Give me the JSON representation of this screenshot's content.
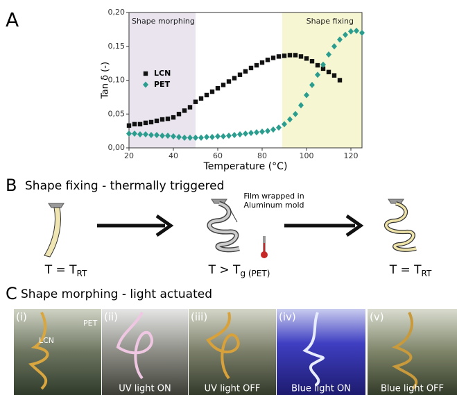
{
  "panel_labels": [
    "A",
    "B",
    "C"
  ],
  "chart_data": {
    "type": "scatter",
    "xlabel": "Temperature (°C)",
    "ylabel": "Tan δ (-)",
    "xlim": [
      20,
      125
    ],
    "ylim": [
      0,
      0.2
    ],
    "xticks": [
      20,
      40,
      60,
      80,
      100,
      120
    ],
    "yticks": [
      {
        "value": 0,
        "label": "0,00"
      },
      {
        "value": 0.05,
        "label": "0,05"
      },
      {
        "value": 0.1,
        "label": "0,10"
      },
      {
        "value": 0.15,
        "label": "0,15"
      },
      {
        "value": 0.2,
        "label": "0,20"
      }
    ],
    "regions": [
      {
        "label": "Shape morphing",
        "x": [
          20,
          50
        ],
        "color": "#e9e4ee"
      },
      {
        "label": "Shape fixing",
        "x": [
          89,
          125
        ],
        "color": "#f7f6d2"
      }
    ],
    "legend": "upper left",
    "series": [
      {
        "name": "LCN",
        "color": "#111111",
        "marker": "square",
        "x": [
          20,
          22.5,
          25,
          27.5,
          30,
          32.5,
          35,
          37.5,
          40,
          42.5,
          45,
          47.5,
          50,
          52.5,
          55,
          57.5,
          60,
          62.5,
          65,
          67.5,
          70,
          72.5,
          75,
          77.5,
          80,
          82.5,
          85,
          87.5,
          90,
          92.5,
          95,
          97.5,
          100,
          102.5,
          105,
          107.5,
          110,
          112.5,
          115
        ],
        "values": [
          0.033,
          0.035,
          0.035,
          0.037,
          0.038,
          0.04,
          0.042,
          0.043,
          0.045,
          0.05,
          0.055,
          0.06,
          0.068,
          0.073,
          0.078,
          0.083,
          0.088,
          0.093,
          0.098,
          0.103,
          0.108,
          0.113,
          0.118,
          0.122,
          0.126,
          0.13,
          0.133,
          0.135,
          0.136,
          0.137,
          0.137,
          0.135,
          0.132,
          0.128,
          0.122,
          0.117,
          0.112,
          0.107,
          0.1
        ]
      },
      {
        "name": "PET",
        "color": "#2a9d8f",
        "marker": "diamond",
        "x": [
          20,
          22.5,
          25,
          27.5,
          30,
          32.5,
          35,
          37.5,
          40,
          42.5,
          45,
          47.5,
          50,
          52.5,
          55,
          57.5,
          60,
          62.5,
          65,
          67.5,
          70,
          72.5,
          75,
          77.5,
          80,
          82.5,
          85,
          87.5,
          90,
          92.5,
          95,
          97.5,
          100,
          102.5,
          105,
          107.5,
          110,
          112.5,
          115,
          117.5,
          120,
          122.5,
          125
        ],
        "values": [
          0.021,
          0.021,
          0.02,
          0.02,
          0.019,
          0.019,
          0.018,
          0.018,
          0.017,
          0.016,
          0.015,
          0.015,
          0.015,
          0.015,
          0.016,
          0.016,
          0.017,
          0.017,
          0.018,
          0.019,
          0.02,
          0.021,
          0.022,
          0.023,
          0.024,
          0.025,
          0.027,
          0.03,
          0.035,
          0.042,
          0.05,
          0.063,
          0.078,
          0.093,
          0.108,
          0.123,
          0.138,
          0.15,
          0.16,
          0.167,
          0.172,
          0.173,
          0.17
        ]
      }
    ]
  },
  "panel_b": {
    "title": "Shape fixing - thermally triggered",
    "states": [
      {
        "main": "T = T",
        "sub": "RT"
      },
      {
        "main": "T > T",
        "sub": "g (PET)"
      },
      {
        "main": "T = T",
        "sub": "RT"
      }
    ],
    "annotation": [
      "Film wrapped in",
      "Aluminum mold"
    ]
  },
  "panel_c": {
    "title": "Shape morphing - light actuated",
    "photos": [
      {
        "label": "(i)",
        "annotations": [
          "LCN",
          "PET"
        ]
      },
      {
        "label": "(ii)",
        "caption": "UV light ON"
      },
      {
        "label": "(iii)",
        "caption": "UV light OFF"
      },
      {
        "label": "(iv)",
        "caption": "Blue light ON"
      },
      {
        "label": "(v)",
        "caption": "Blue light OFF"
      }
    ]
  }
}
